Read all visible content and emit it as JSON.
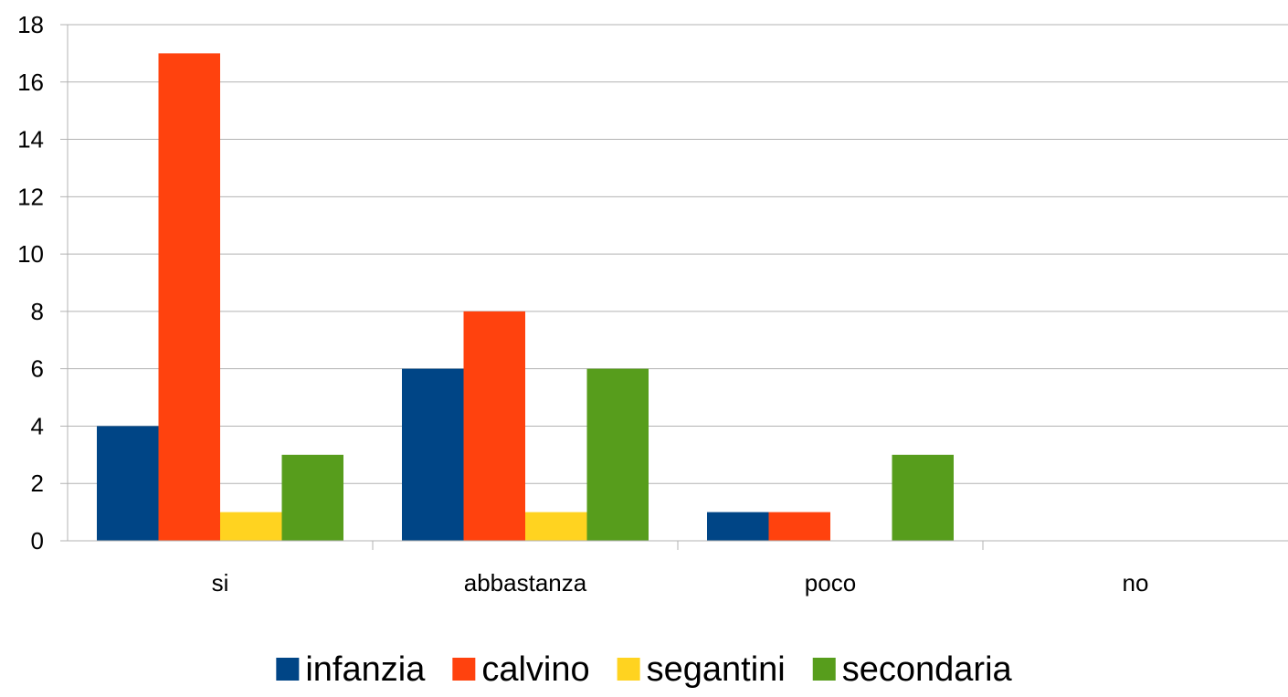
{
  "chart_data": {
    "type": "bar",
    "categories": [
      "si",
      "abbastanza",
      "poco",
      "no"
    ],
    "series": [
      {
        "name": "infanzia",
        "values": [
          4,
          6,
          1,
          0
        ],
        "color": "#004586"
      },
      {
        "name": "calvino",
        "values": [
          17,
          8,
          1,
          0
        ],
        "color": "#ff420e"
      },
      {
        "name": "segantini",
        "values": [
          1,
          1,
          0,
          0
        ],
        "color": "#ffd320"
      },
      {
        "name": "secondaria",
        "values": [
          3,
          6,
          3,
          0
        ],
        "color": "#579d1c"
      }
    ],
    "ylim": [
      0,
      18
    ],
    "yticks": [
      0,
      2,
      4,
      6,
      8,
      10,
      12,
      14,
      16,
      18
    ],
    "grid": true,
    "legend_position": "bottom",
    "title": "",
    "xlabel": "",
    "ylabel": ""
  }
}
